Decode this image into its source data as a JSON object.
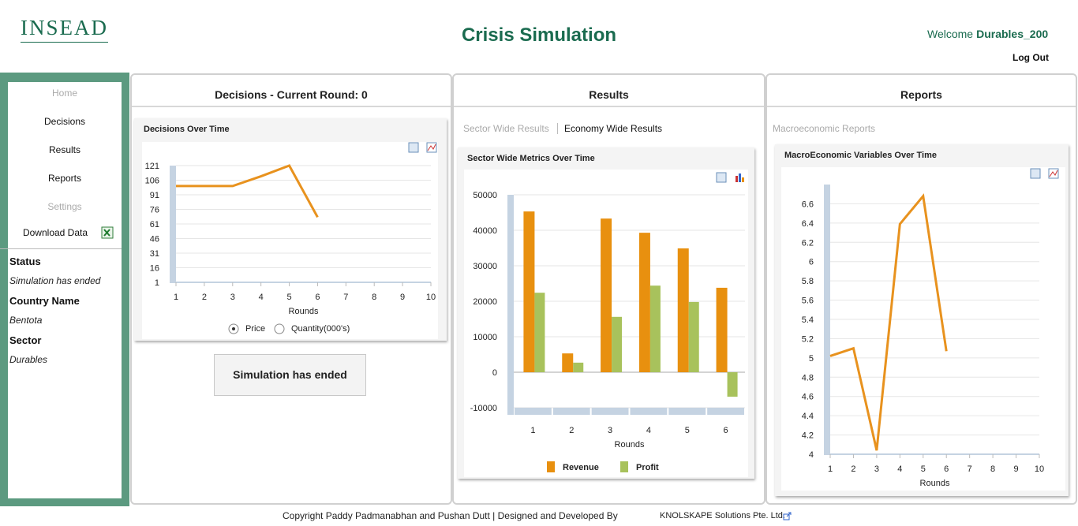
{
  "header": {
    "logo": "INSEAD",
    "title": "Crisis Simulation",
    "welcome": "Welcome",
    "user": "Durables_200",
    "logout": "Log Out"
  },
  "sidebar": {
    "nav": [
      "Home",
      "Decisions",
      "Results",
      "Reports",
      "Settings",
      "Download Data"
    ],
    "info": [
      {
        "label": "Status",
        "value": "Simulation has ended"
      },
      {
        "label": "Country Name",
        "value": "Bentota"
      },
      {
        "label": "Sector",
        "value": "Durables"
      }
    ]
  },
  "panels": [
    {
      "title": "Decisions - Current Round: 0",
      "button": "Simulation has ended"
    },
    {
      "title": "Results",
      "tabs": [
        "Sector Wide Results",
        "Economy Wide Results"
      ]
    },
    {
      "title": "Reports",
      "tabs": [
        "Macroeconomic Reports"
      ]
    }
  ],
  "chart_data": [
    {
      "type": "line",
      "title": "Decisions Over Time",
      "x": [
        1,
        2,
        3,
        4,
        5,
        6
      ],
      "values": [
        100,
        100,
        100,
        110,
        121,
        68
      ],
      "color": "#e8921e",
      "xlim": [
        1,
        10
      ],
      "xticks": [
        1,
        2,
        3,
        4,
        5,
        6,
        7,
        8,
        9,
        10
      ],
      "ylim": [
        1,
        121
      ],
      "yticks": [
        1,
        16,
        31,
        46,
        61,
        76,
        91,
        106,
        121
      ],
      "xlabel": "Rounds",
      "grid": true,
      "options": [
        "Price",
        "Quantity(000's)"
      ]
    },
    {
      "type": "bar",
      "title": "Sector Wide Metrics Over Time",
      "categories": [
        "1",
        "2",
        "3",
        "4",
        "5",
        "6"
      ],
      "series": [
        {
          "name": "Revenue",
          "color": "#e8900f",
          "values": [
            45300,
            5300,
            43300,
            39300,
            34900,
            23800
          ]
        },
        {
          "name": "Profit",
          "color": "#a8c25c",
          "values": [
            22400,
            2700,
            15600,
            24400,
            19800,
            -6900
          ]
        }
      ],
      "ylim": [
        -10000,
        50000
      ],
      "yticks": [
        -10000,
        0,
        10000,
        20000,
        30000,
        40000,
        50000
      ],
      "xlabel": "Rounds",
      "grid": true
    },
    {
      "type": "line",
      "title": "MacroEconomic Variables Over Time",
      "x": [
        1,
        2,
        3,
        4,
        5,
        6
      ],
      "values": [
        5.02,
        5.1,
        4.04,
        6.39,
        6.68,
        5.07
      ],
      "color": "#e8921e",
      "xlim": [
        1,
        10
      ],
      "xticks": [
        1,
        2,
        3,
        4,
        5,
        6,
        7,
        8,
        9,
        10
      ],
      "ylim": [
        4,
        6.8
      ],
      "yticks": [
        4,
        4.2,
        4.4,
        4.6,
        4.8,
        5,
        5.2,
        5.4,
        5.6,
        5.8,
        6,
        6.2,
        6.4,
        6.6
      ],
      "xlabel": "Rounds",
      "grid": true
    }
  ],
  "footer": {
    "text": "Copyright Paddy Padmanabhan and Pushan Dutt | Designed and Developed By",
    "link": "KNOLSKAPE Solutions Pte. Ltd."
  }
}
